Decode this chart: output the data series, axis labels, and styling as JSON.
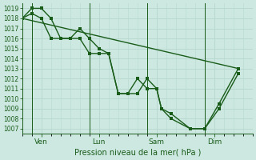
{
  "xlabel": "Pression niveau de la mer( hPa )",
  "ylim": [
    1006.5,
    1019.5
  ],
  "yticks": [
    1007,
    1008,
    1009,
    1010,
    1011,
    1012,
    1013,
    1014,
    1015,
    1016,
    1017,
    1018,
    1019
  ],
  "xlim": [
    0,
    96
  ],
  "day_ticks": [
    8,
    32,
    56,
    80
  ],
  "day_labels": [
    "Ven",
    "Lun",
    "Sam",
    "Dim"
  ],
  "vline_positions": [
    4,
    28,
    52,
    76
  ],
  "bg_color": "#cce8e0",
  "grid_color": "#b8d8d0",
  "line_color": "#1a5c1a",
  "marker_size": 2.5,
  "line_width": 1.0,
  "line1_x": [
    0,
    4,
    8,
    12,
    16,
    20,
    24,
    28,
    32,
    36,
    40,
    44,
    48,
    52,
    56,
    58,
    62,
    70,
    76,
    82,
    90
  ],
  "line1_y": [
    1018,
    1019,
    1019,
    1018,
    1016,
    1016,
    1017,
    1016,
    1015,
    1014.5,
    1010.5,
    1010.5,
    1010.5,
    1012,
    1011,
    1009,
    1008.5,
    1007,
    1007,
    1009.5,
    1013
  ],
  "line2_x": [
    0,
    4,
    8,
    12,
    16,
    20,
    24,
    28,
    32,
    36,
    40,
    44,
    48,
    52,
    56,
    58,
    62,
    70,
    76,
    82,
    90
  ],
  "line2_y": [
    1018,
    1018.5,
    1018,
    1016,
    1016,
    1016,
    1016,
    1014.5,
    1014.5,
    1014.5,
    1010.5,
    1010.5,
    1012,
    1011,
    1011,
    1009,
    1008,
    1007,
    1007,
    1009,
    1012.5
  ],
  "line3_x": [
    0,
    90
  ],
  "line3_y": [
    1018,
    1013
  ]
}
